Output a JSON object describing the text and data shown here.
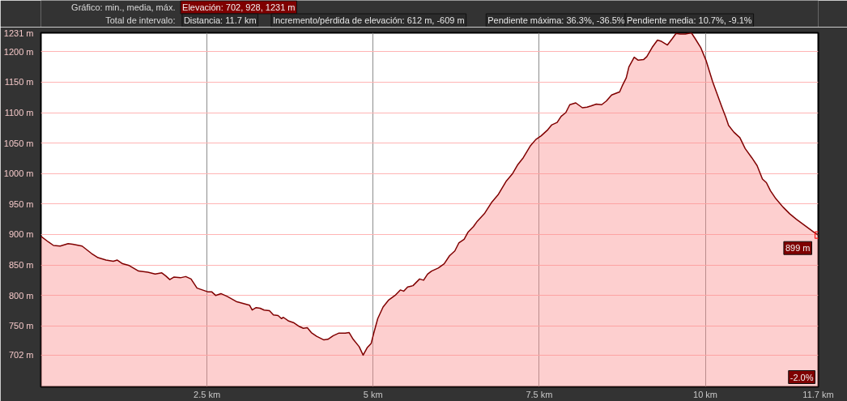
{
  "chart_data": {
    "type": "area",
    "x": [
      0,
      0.11,
      0.19,
      0.29,
      0.41,
      0.48,
      0.62,
      0.76,
      0.86,
      0.98,
      1.09,
      1.15,
      1.23,
      1.33,
      1.47,
      1.61,
      1.72,
      1.82,
      1.88,
      1.94,
      2.0,
      2.1,
      2.18,
      2.26,
      2.35,
      2.43,
      2.51,
      2.57,
      2.63,
      2.71,
      2.81,
      2.94,
      3.04,
      3.14,
      3.18,
      3.24,
      3.3,
      3.36,
      3.44,
      3.5,
      3.57,
      3.62,
      3.65,
      3.73,
      3.81,
      3.89,
      3.95,
      4.01,
      4.07,
      4.15,
      4.26,
      4.32,
      4.4,
      4.48,
      4.58,
      4.64,
      4.7,
      4.79,
      4.85,
      4.91,
      4.97,
      5.01,
      5.07,
      5.15,
      5.23,
      5.33,
      5.41,
      5.46,
      5.52,
      5.6,
      5.7,
      5.76,
      5.82,
      5.88,
      5.98,
      6.07,
      6.15,
      6.23,
      6.29,
      6.37,
      6.43,
      6.51,
      6.57,
      6.68,
      6.78,
      6.88,
      7.0,
      7.1,
      7.18,
      7.26,
      7.37,
      7.45,
      7.53,
      7.63,
      7.69,
      7.77,
      7.83,
      7.9,
      7.96,
      8.05,
      8.15,
      8.22,
      8.28,
      8.36,
      8.44,
      8.51,
      8.59,
      8.71,
      8.75,
      8.81,
      8.85,
      8.93,
      8.99,
      9.07,
      9.12,
      9.2,
      9.28,
      9.34,
      9.43,
      9.5,
      9.56,
      9.62,
      9.7,
      9.79,
      9.85,
      9.93,
      10.01,
      10.11,
      10.17,
      10.25,
      10.31,
      10.35,
      10.43,
      10.52,
      10.6,
      10.7,
      10.78,
      10.86,
      10.92,
      10.98,
      11.06,
      11.17,
      11.27,
      11.37,
      11.63,
      11.7
    ],
    "series": [
      {
        "color": "#800000",
        "values": [
          897,
          888,
          882,
          881,
          885,
          884,
          881,
          869,
          862,
          858,
          856,
          858,
          852,
          849,
          840,
          838,
          835,
          837,
          832,
          826,
          830,
          829,
          831,
          827,
          812,
          809,
          806,
          806,
          800,
          803,
          798,
          790,
          787,
          784,
          776,
          780,
          779,
          776,
          775,
          768,
          767,
          762,
          764,
          758,
          755,
          749,
          746,
          747,
          739,
          733,
          727,
          728,
          734,
          738,
          738,
          739,
          728,
          716,
          702,
          714,
          721,
          738,
          762,
          781,
          792,
          800,
          809,
          807,
          814,
          816,
          827,
          825,
          835,
          840,
          845,
          852,
          865,
          873,
          886,
          892,
          904,
          913,
          922,
          935,
          952,
          965,
          987,
          1000,
          1015,
          1026,
          1046,
          1056,
          1062,
          1072,
          1080,
          1084,
          1094,
          1100,
          1113,
          1116,
          1108,
          1109,
          1111,
          1114,
          1113,
          1119,
          1129,
          1134,
          1144,
          1157,
          1175,
          1191,
          1186,
          1187,
          1192,
          1207,
          1219,
          1217,
          1211,
          1221,
          1230,
          1229,
          1229,
          1231,
          1221,
          1207,
          1186,
          1151,
          1133,
          1109,
          1092,
          1079,
          1068,
          1059,
          1041,
          1026,
          1013,
          991,
          985,
          972,
          959,
          945,
          934,
          925,
          904,
          899
        ]
      }
    ],
    "xlim": [
      0,
      11.7
    ],
    "ylim": [
      650,
      1231
    ],
    "xticks": [
      {
        "value": 2.5,
        "label": "2.5 km"
      },
      {
        "value": 5,
        "label": "5 km"
      },
      {
        "value": 7.5,
        "label": "7.5 km"
      },
      {
        "value": 10,
        "label": "10 km"
      },
      {
        "value": 11.7,
        "label": "11.7 km"
      }
    ],
    "yticks": [
      {
        "value": 702,
        "label": "702 m"
      },
      {
        "value": 750,
        "label": "750 m"
      },
      {
        "value": 800,
        "label": "800 m"
      },
      {
        "value": 850,
        "label": "850 m"
      },
      {
        "value": 900,
        "label": "900 m"
      },
      {
        "value": 950,
        "label": "950 m"
      },
      {
        "value": 1000,
        "label": "1000 m"
      },
      {
        "value": 1050,
        "label": "1050 m"
      },
      {
        "value": 1100,
        "label": "1100 m"
      },
      {
        "value": 1150,
        "label": "1150 m"
      },
      {
        "value": 1200,
        "label": "1200 m"
      },
      {
        "value": 1231,
        "label": "1231 m"
      }
    ],
    "grid": true,
    "annotations": [
      "Gráfico: min., media, máx.",
      "Elevación: 702, 928, 1231 m",
      "Total de intervalo:",
      "Distancia: 11.7 km",
      "Incremento/pérdida de elevación: 612 m, -609 m",
      "Pendiente máxima: 36.3%, -36.5%",
      "Pendiente media: 10.7%, -9.1%",
      {
        "text": "899 m",
        "x": 11.7,
        "y": 899
      },
      "-2.0%"
    ]
  }
}
